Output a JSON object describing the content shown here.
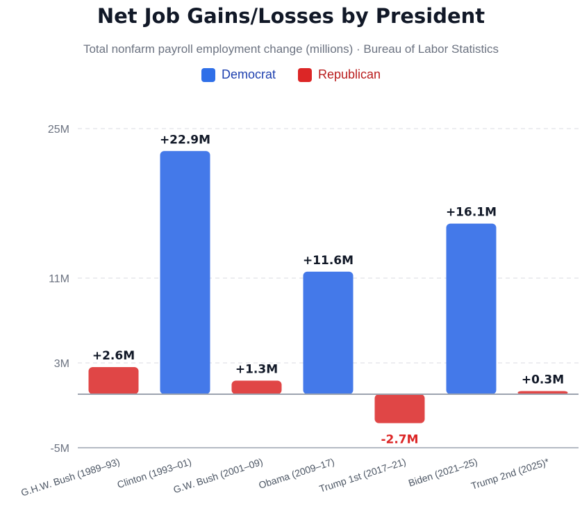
{
  "chart_data": {
    "type": "bar",
    "title": "Net Job Gains/Losses by President",
    "subtitle": "Total nonfarm payroll employment change (millions) · Bureau of Labor Statistics",
    "xlabel": "",
    "ylabel": "",
    "ylim": [
      -5,
      25
    ],
    "yticks": [
      {
        "value": 25,
        "label": "25M"
      },
      {
        "value": 11,
        "label": "11M"
      },
      {
        "value": 3,
        "label": "3M"
      },
      {
        "value": -5,
        "label": "-5M"
      }
    ],
    "grid": true,
    "legend_position": "top-center",
    "legend": [
      {
        "name": "Democrat",
        "party": "D"
      },
      {
        "name": "Republican",
        "party": "R"
      }
    ],
    "categories": [
      "G.H.W. Bush (1989–93)",
      "Clinton (1993–01)",
      "G.W. Bush (2001–09)",
      "Obama (2009–17)",
      "Trump 1st (2017–21)",
      "Biden (2021–25)",
      "Trump 2nd (2025)*"
    ],
    "values": [
      2.6,
      22.9,
      1.3,
      11.6,
      -2.7,
      16.1,
      0.3
    ],
    "parties": [
      "R",
      "D",
      "R",
      "D",
      "R",
      "D",
      "R"
    ],
    "value_labels": [
      "+2.6M",
      "+22.9M",
      "+1.3M",
      "+11.6M",
      "-2.7M",
      "+16.1M",
      "+0.3M"
    ]
  },
  "colors": {
    "democrat": "#4479e9",
    "republican": "#e04646",
    "democrat_text": "#1e40af",
    "republican_text": "#b91c1c",
    "negative_label": "#dc2626",
    "positive_label": "#111827",
    "grid": "#e5e7eb",
    "axis": "#9ca3af"
  }
}
